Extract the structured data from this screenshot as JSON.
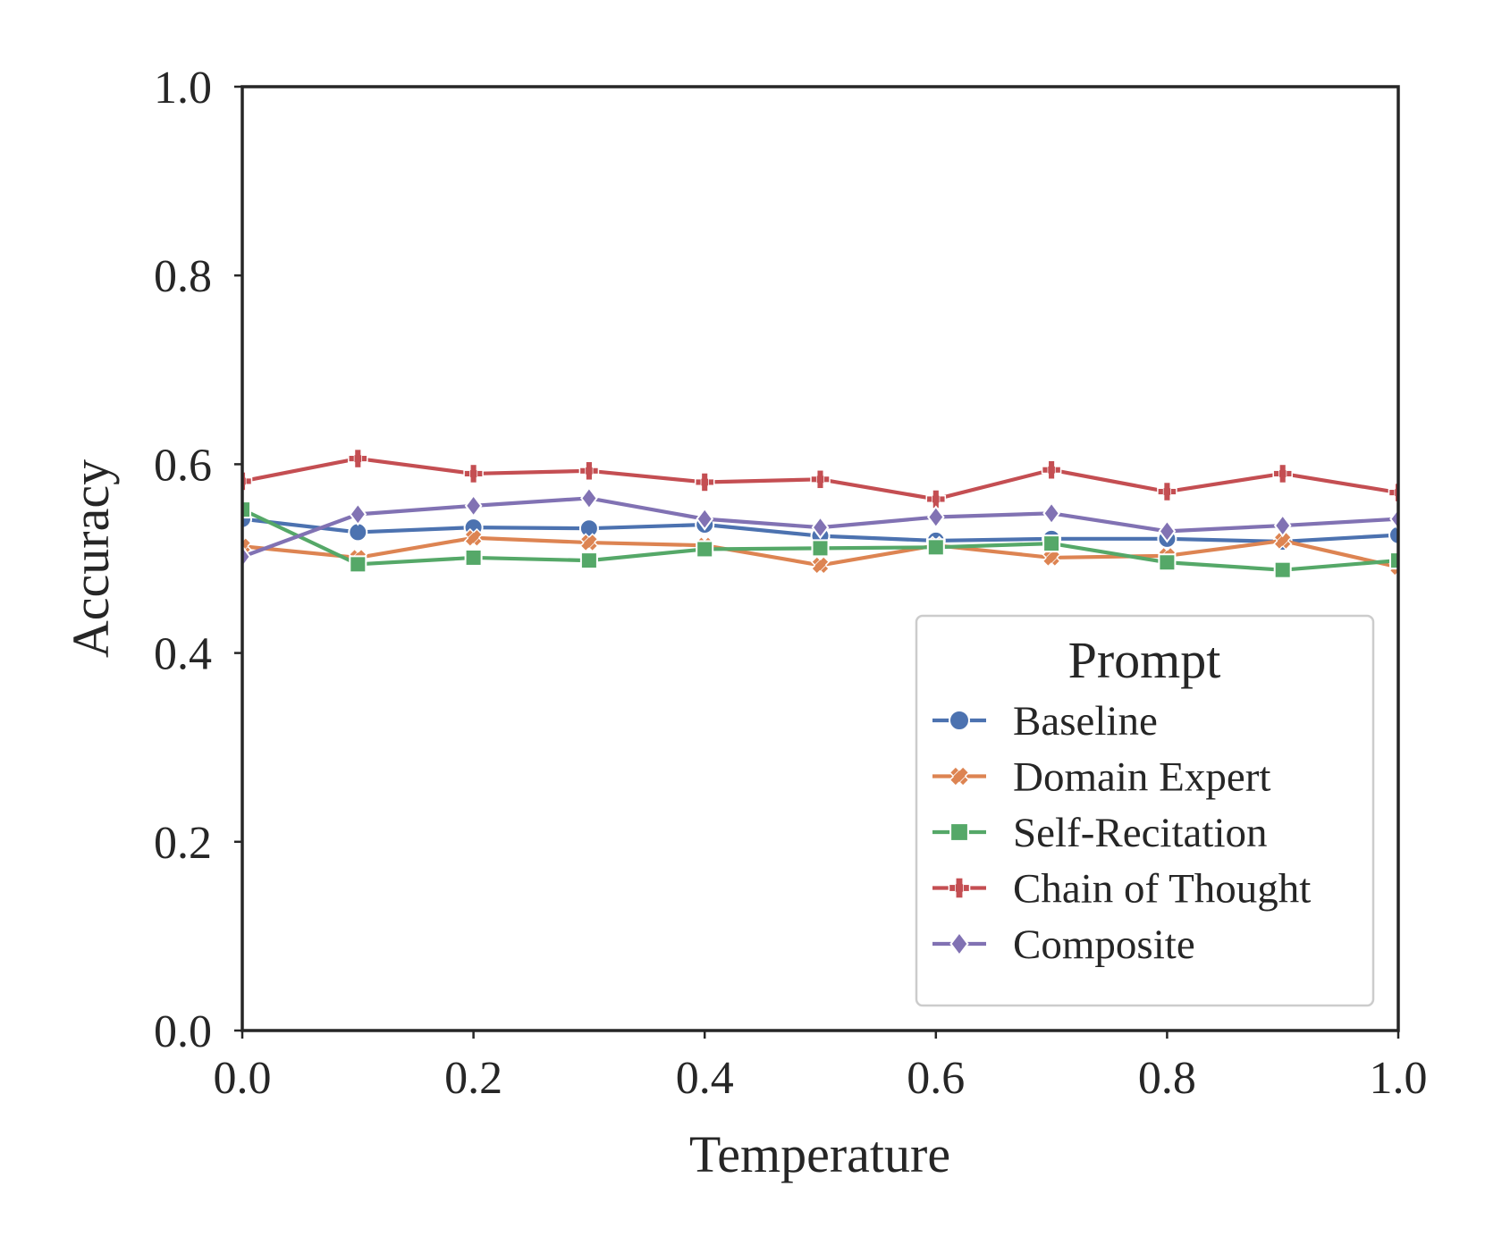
{
  "chart_data": {
    "type": "line",
    "title": "",
    "xlabel": "Temperature",
    "ylabel": "Accuracy",
    "xlim": [
      0.0,
      1.0
    ],
    "ylim": [
      0.0,
      1.0
    ],
    "xticks": [
      0.0,
      0.2,
      0.4,
      0.6,
      0.8,
      1.0
    ],
    "xtick_labels": [
      "0.0",
      "0.2",
      "0.4",
      "0.6",
      "0.8",
      "1.0"
    ],
    "yticks": [
      0.0,
      0.2,
      0.4,
      0.6,
      0.8,
      1.0
    ],
    "ytick_labels": [
      "0.0",
      "0.2",
      "0.4",
      "0.6",
      "0.8",
      "1.0"
    ],
    "grid": false,
    "legend": {
      "title": "Prompt",
      "placement": "lower-right"
    },
    "x": [
      0.0,
      0.1,
      0.2,
      0.3,
      0.4,
      0.5,
      0.6,
      0.7,
      0.8,
      0.9,
      1.0
    ],
    "series": [
      {
        "name": "Baseline",
        "color": "#4c72b0",
        "marker": "circle",
        "values": [
          0.542,
          0.528,
          0.533,
          0.532,
          0.536,
          0.524,
          0.519,
          0.521,
          0.521,
          0.518,
          0.525
        ]
      },
      {
        "name": "Domain Expert",
        "color": "#dd8452",
        "marker": "x",
        "values": [
          0.513,
          0.501,
          0.522,
          0.517,
          0.514,
          0.493,
          0.514,
          0.501,
          0.503,
          0.519,
          0.491
        ]
      },
      {
        "name": "Self-Recitation",
        "color": "#55a868",
        "marker": "square",
        "values": [
          0.552,
          0.494,
          0.501,
          0.498,
          0.51,
          0.511,
          0.512,
          0.516,
          0.496,
          0.488,
          0.498
        ]
      },
      {
        "name": "Chain of Thought",
        "color": "#c44e52",
        "marker": "plus",
        "values": [
          0.582,
          0.606,
          0.59,
          0.593,
          0.581,
          0.584,
          0.563,
          0.594,
          0.571,
          0.59,
          0.57
        ]
      },
      {
        "name": "Composite",
        "color": "#8172b3",
        "marker": "diamond",
        "values": [
          0.502,
          0.547,
          0.556,
          0.564,
          0.542,
          0.533,
          0.544,
          0.548,
          0.529,
          0.535,
          0.542
        ]
      }
    ]
  }
}
